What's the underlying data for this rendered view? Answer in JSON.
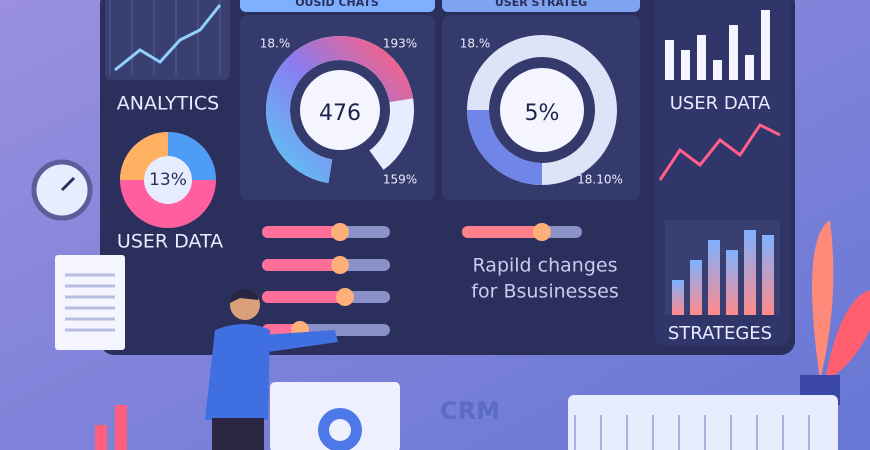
{
  "tabs": [
    "OUSID CHATS",
    "USER STRATEG"
  ],
  "left_panel": {
    "analytics_label": "ANALYTICS",
    "pie_value": "13%",
    "user_data_label": "USER DATA"
  },
  "gauge_left": {
    "center_value": "476",
    "label_top_left": "18.%",
    "label_top_right": "193%",
    "label_bottom_right": "159%"
  },
  "gauge_right": {
    "center_value": "5%",
    "label_top_left": "18.%",
    "label_bottom_right": "18.10%"
  },
  "right_panel": {
    "user_data_label": "USER DATA",
    "strategies_label": "STRATEGES"
  },
  "message": {
    "line1": "Rapild changes",
    "line2": "for Bsusinesses"
  },
  "crm_label": "CRM"
}
